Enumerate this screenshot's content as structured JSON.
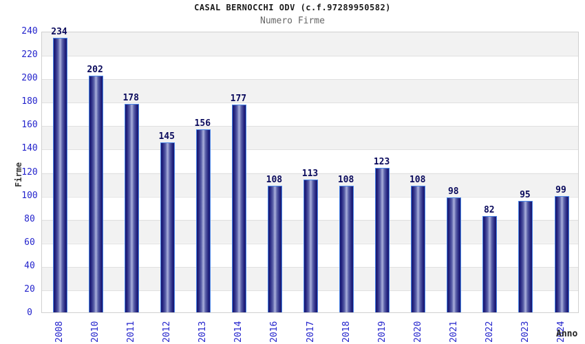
{
  "header": {
    "title": "CASAL BERNOCCHI ODV (c.f.97289950582)",
    "subtitle": "Numero Firme"
  },
  "chart_data": {
    "type": "bar",
    "title": "CASAL BERNOCCHI ODV (c.f.97289950582)",
    "subtitle": "Numero Firme",
    "categories": [
      "2008",
      "2010",
      "2011",
      "2012",
      "2013",
      "2014",
      "2016",
      "2017",
      "2018",
      "2019",
      "2020",
      "2021",
      "2022",
      "2023",
      "2024"
    ],
    "values": [
      234,
      202,
      178,
      145,
      156,
      177,
      108,
      113,
      108,
      123,
      108,
      98,
      82,
      95,
      99
    ],
    "xlabel": "Anno",
    "ylabel": "Firme",
    "ylim": [
      0,
      240
    ],
    "ytick_step": 20,
    "yticks": [
      0,
      20,
      40,
      60,
      80,
      100,
      120,
      140,
      160,
      180,
      200,
      220,
      240
    ],
    "grid": true,
    "legend": "none",
    "colors": {
      "bar_dark": "#18186e",
      "bar_mid": "#5a60a8",
      "bar_light": "#aab0dc",
      "bar_border": "#4a86e8",
      "tick_label": "#2323cc",
      "value_label": "#0a0a5c",
      "band_gray": "#f2f2f2",
      "band_white": "#ffffff",
      "plot_border": "#d0d0d0",
      "title_color": "#1a1a1a",
      "subtitle_color": "#666666",
      "axis_label_color": "#333333"
    }
  }
}
